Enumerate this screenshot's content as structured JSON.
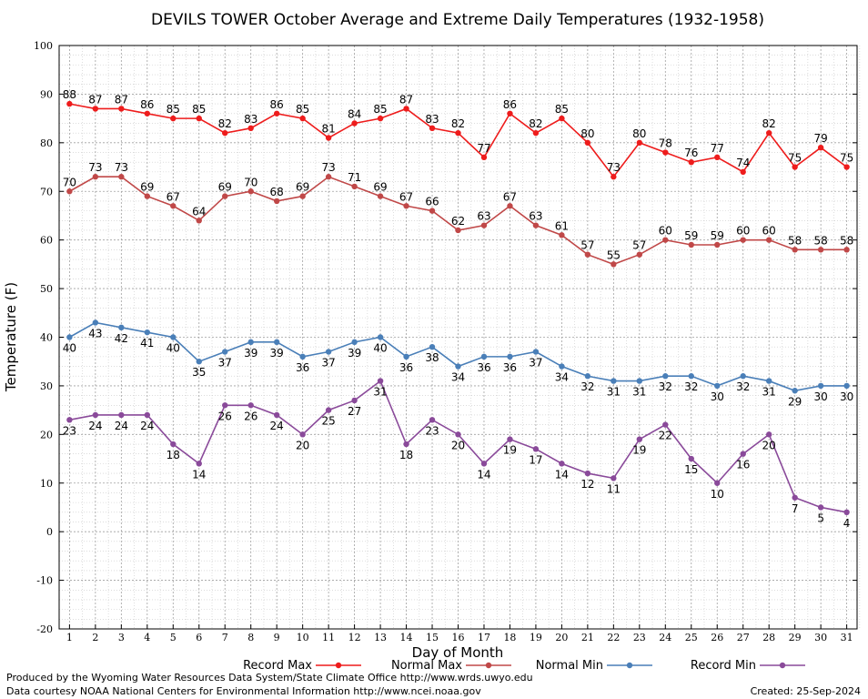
{
  "chart_data": {
    "type": "line",
    "title": "DEVILS TOWER October Average and Extreme Daily Temperatures (1932-1958)",
    "xlabel": "Day of Month",
    "ylabel": "Temperature (F)",
    "x": [
      1,
      2,
      3,
      4,
      5,
      6,
      7,
      8,
      9,
      10,
      11,
      12,
      13,
      14,
      15,
      16,
      17,
      18,
      19,
      20,
      21,
      22,
      23,
      24,
      25,
      26,
      27,
      28,
      29,
      30,
      31
    ],
    "xlim": [
      0.6,
      31.4
    ],
    "ylim": [
      -20,
      100
    ],
    "yticks": [
      -20,
      -10,
      0,
      10,
      20,
      30,
      40,
      50,
      60,
      70,
      80,
      90,
      100
    ],
    "grid": true,
    "legend_position": "bottom",
    "series": [
      {
        "name": "Record Max",
        "color": "#ee1c1c",
        "label_pos": "above",
        "values": [
          88,
          87,
          87,
          86,
          85,
          85,
          82,
          83,
          86,
          85,
          81,
          84,
          85,
          87,
          83,
          82,
          77,
          86,
          82,
          85,
          80,
          73,
          80,
          78,
          76,
          77,
          74,
          82,
          75,
          79,
          75
        ]
      },
      {
        "name": "Normal Max",
        "color": "#c04848",
        "label_pos": "above",
        "values": [
          70,
          73,
          73,
          69,
          67,
          64,
          69,
          70,
          68,
          69,
          73,
          71,
          69,
          67,
          66,
          62,
          63,
          67,
          63,
          61,
          57,
          55,
          57,
          60,
          59,
          59,
          60,
          60,
          58,
          58,
          58
        ]
      },
      {
        "name": "Normal Min",
        "color": "#4a7fb8",
        "label_pos": "below",
        "values": [
          40,
          43,
          42,
          41,
          40,
          35,
          37,
          39,
          39,
          36,
          37,
          39,
          40,
          36,
          38,
          34,
          36,
          36,
          37,
          34,
          32,
          31,
          31,
          32,
          32,
          30,
          32,
          31,
          29,
          30,
          30
        ]
      },
      {
        "name": "Record Min",
        "color": "#8a4a9a",
        "label_pos": "below",
        "values": [
          23,
          24,
          24,
          24,
          18,
          14,
          26,
          26,
          24,
          20,
          25,
          27,
          31,
          18,
          23,
          20,
          14,
          19,
          17,
          14,
          12,
          11,
          19,
          22,
          15,
          10,
          16,
          20,
          7,
          5,
          4
        ]
      }
    ]
  },
  "footer": {
    "produced_by": "Produced by the Wyoming Water Resources Data System/State Climate Office http://www.wrds.uwyo.edu",
    "courtesy": "Data courtesy NOAA National Centers for Environmental Information http://www.ncei.noaa.gov",
    "created": "Created: 25-Sep-2024"
  }
}
